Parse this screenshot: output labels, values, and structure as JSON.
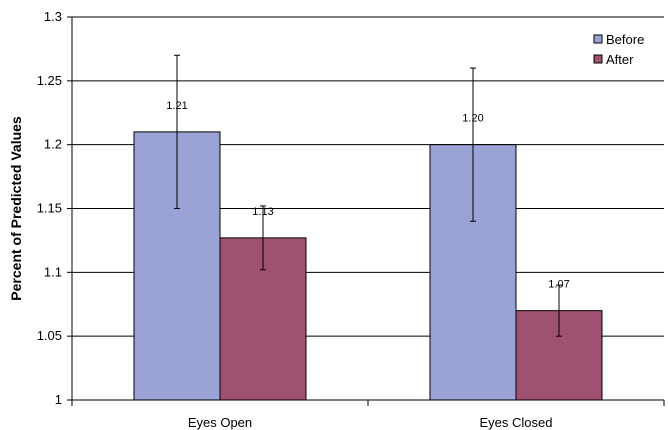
{
  "chart_data": {
    "type": "bar",
    "title": "",
    "xlabel": "",
    "ylabel": "Percent of Predicted Values",
    "categories": [
      "Eyes Open",
      "Eyes Closed"
    ],
    "series": [
      {
        "name": "Before",
        "color": "#9ba2d6",
        "values": [
          1.21,
          1.2
        ],
        "labels": [
          "1.21",
          "1.20"
        ],
        "errors": [
          0.06,
          0.06
        ]
      },
      {
        "name": "After",
        "color": "#a05070",
        "values": [
          1.127,
          1.07
        ],
        "labels": [
          "1.13",
          "1.07"
        ],
        "errors": [
          0.025,
          0.02
        ]
      }
    ],
    "ylim": [
      1,
      1.3
    ],
    "yticks": [
      "1",
      "1.05",
      "1.1",
      "1.15",
      "1.2",
      "1.25",
      "1.3"
    ],
    "grid": true,
    "legend": "top-right"
  }
}
